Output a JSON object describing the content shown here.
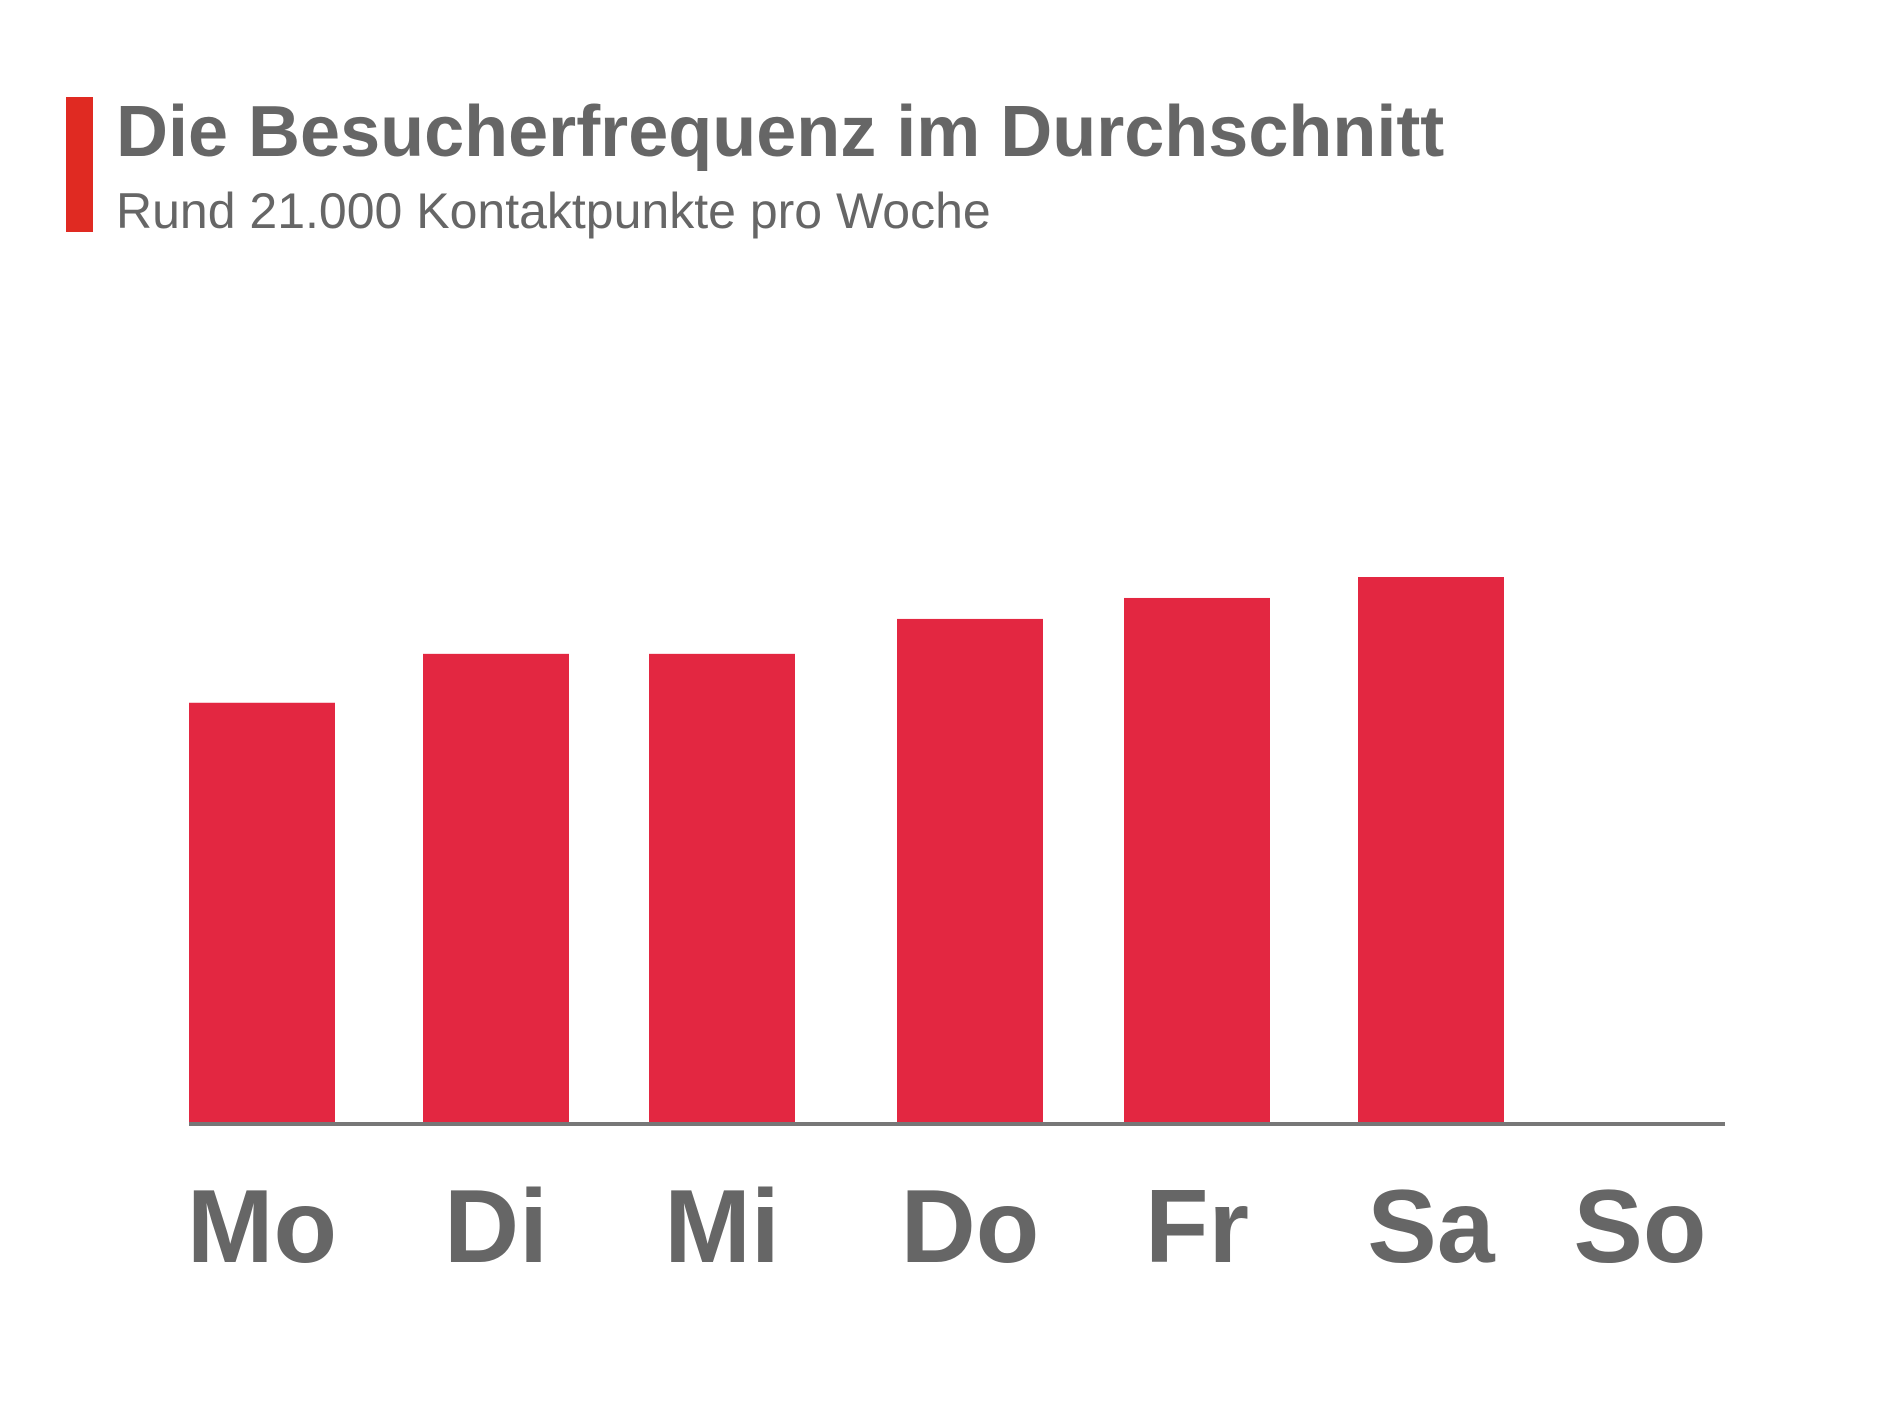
{
  "chart_data": {
    "type": "bar",
    "title": "Die Besucherfrequenz im Durchschnitt",
    "subtitle": "Rund 21.000 Kontaktpunkte pro Woche",
    "categories": [
      "Mo",
      "Di",
      "Mi",
      "Do",
      "Fr",
      "Sa",
      "So"
    ],
    "values": [
      3000,
      3350,
      3350,
      3600,
      3750,
      3900,
      0
    ],
    "color": "#e32741"
  }
}
